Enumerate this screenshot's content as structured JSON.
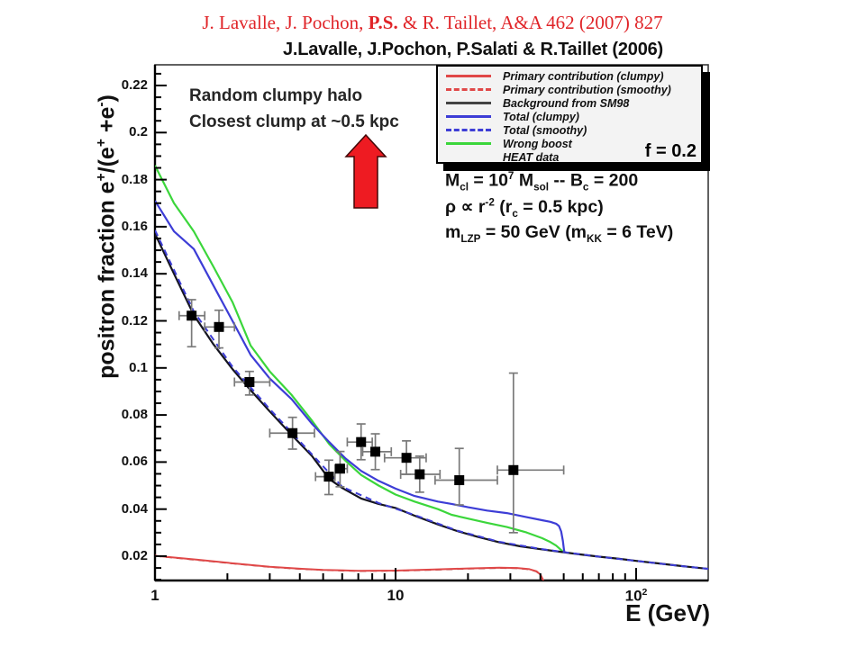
{
  "titles": {
    "credit_segments": [
      {
        "text": "J. Lavalle, J. Pochon, ",
        "bold": false
      },
      {
        "text": "P.S.",
        "bold": true
      },
      {
        "text": " & R. Taillet, A&A 462 (2007) 827",
        "bold": false
      }
    ],
    "plot_title": "J.Lavalle, J.Pochon, P.Salati & R.Taillet (2006)"
  },
  "annotations": {
    "halo_line1": "Random clumpy halo",
    "halo_line2": "Closest clump at ~0.5 kpc",
    "boost_factor": "f = 0.2",
    "stats_lines": [
      "M_{cl} = 10^{7} M_{sol} -- B_{c} = 200",
      "ρ ∝ r^{-2} (r_{c} = 0.5 kpc)",
      "m_{LZP} = 50 GeV (m_{KK} = 6 TeV)"
    ],
    "arrow": {
      "meaning": "red-up-arrow",
      "fill": "#ee1b22",
      "stroke": "#420606"
    }
  },
  "chart_data": {
    "type": "line",
    "title": "J.Lavalle, J.Pochon, P.Salati & R.Taillet (2006)",
    "xlabel": "E (GeV)",
    "ylabel": "positron fraction e^{+}/(e^{+} +e^{-})",
    "x_scale": "log",
    "xlim": [
      1,
      200
    ],
    "ylim": [
      0.0097,
      0.2288
    ],
    "grid": false,
    "legend_position": "top-right",
    "xticks": {
      "majors": [
        {
          "v": 1,
          "label": "1"
        },
        {
          "v": 10,
          "label": "10"
        },
        {
          "v": 100,
          "label": "10^{2}"
        }
      ],
      "minor_mantissas": [
        2,
        3,
        4,
        5,
        6,
        7,
        8,
        9
      ]
    },
    "yticks": {
      "majors": [
        {
          "v": 0.02,
          "label": "0.02"
        },
        {
          "v": 0.04,
          "label": "0.04"
        },
        {
          "v": 0.06,
          "label": "0.06"
        },
        {
          "v": 0.08,
          "label": "0.08"
        },
        {
          "v": 0.1,
          "label": "0.1"
        },
        {
          "v": 0.12,
          "label": "0.12"
        },
        {
          "v": 0.14,
          "label": "0.14"
        },
        {
          "v": 0.16,
          "label": "0.16"
        },
        {
          "v": 0.18,
          "label": "0.18"
        },
        {
          "v": 0.2,
          "label": "0.2"
        },
        {
          "v": 0.22,
          "label": "0.22"
        }
      ],
      "minor_step": 0.005
    },
    "series": [
      {
        "name": "Wrong boost",
        "color": "#3bd63b",
        "style": "solid",
        "width": 2.2,
        "points": [
          [
            1,
            0.186
          ],
          [
            1.2,
            0.17
          ],
          [
            1.45,
            0.158
          ],
          [
            1.75,
            0.143
          ],
          [
            2.1,
            0.128
          ],
          [
            2.5,
            0.1095
          ],
          [
            3,
            0.0985
          ],
          [
            3.7,
            0.0885
          ],
          [
            4.5,
            0.0775
          ],
          [
            5.3,
            0.0676
          ],
          [
            6.2,
            0.0605
          ],
          [
            7.2,
            0.0545
          ],
          [
            8.5,
            0.05
          ],
          [
            10,
            0.0462
          ],
          [
            12,
            0.0432
          ],
          [
            15,
            0.04
          ],
          [
            17.1,
            0.0376
          ],
          [
            20,
            0.036
          ],
          [
            24,
            0.0342
          ],
          [
            29,
            0.0324
          ],
          [
            35,
            0.0301
          ],
          [
            40.6,
            0.0277
          ],
          [
            44,
            0.026
          ],
          [
            46.5,
            0.0245
          ],
          [
            48,
            0.0233
          ],
          [
            49,
            0.0224
          ],
          [
            49.7,
            0.0218
          ]
        ]
      },
      {
        "name": "Total (clumpy)",
        "color": "#3d3dd6",
        "style": "solid",
        "width": 2.2,
        "points": [
          [
            1,
            0.171
          ],
          [
            1.2,
            0.158
          ],
          [
            1.45,
            0.1505
          ],
          [
            1.75,
            0.135
          ],
          [
            2.1,
            0.12
          ],
          [
            2.5,
            0.1055
          ],
          [
            3,
            0.0955
          ],
          [
            3.7,
            0.0867
          ],
          [
            4.5,
            0.0762
          ],
          [
            5.3,
            0.0685
          ],
          [
            6.2,
            0.0615
          ],
          [
            7.2,
            0.0562
          ],
          [
            8.5,
            0.052
          ],
          [
            10,
            0.0487
          ],
          [
            12,
            0.0456
          ],
          [
            15,
            0.0432
          ],
          [
            17.1,
            0.0422
          ],
          [
            20,
            0.0408
          ],
          [
            24,
            0.0394
          ],
          [
            29,
            0.0383
          ],
          [
            35,
            0.0366
          ],
          [
            40.6,
            0.0353
          ],
          [
            44,
            0.0346
          ],
          [
            46.5,
            0.0338
          ],
          [
            47.8,
            0.0328
          ],
          [
            48.8,
            0.0305
          ],
          [
            49.6,
            0.0265
          ],
          [
            50.1,
            0.0228
          ],
          [
            50.4,
            0.0216
          ]
        ]
      },
      {
        "name": "Background from SM98",
        "color": "#15151f",
        "style": "solid",
        "width": 2.2,
        "points": [
          [
            1,
            0.157
          ],
          [
            1.2,
            0.14
          ],
          [
            1.45,
            0.1225
          ],
          [
            1.75,
            0.11
          ],
          [
            2.1,
            0.0995
          ],
          [
            2.5,
            0.0905
          ],
          [
            3,
            0.0815
          ],
          [
            3.7,
            0.0715
          ],
          [
            4.5,
            0.0625
          ],
          [
            5.3,
            0.0528
          ],
          [
            6,
            0.049
          ],
          [
            7.2,
            0.0445
          ],
          [
            8.5,
            0.0422
          ],
          [
            10,
            0.0405
          ],
          [
            12,
            0.0372
          ],
          [
            15,
            0.0335
          ],
          [
            18,
            0.0307
          ],
          [
            22,
            0.0282
          ],
          [
            27,
            0.0259
          ],
          [
            33,
            0.0242
          ],
          [
            40,
            0.023
          ],
          [
            48,
            0.0219
          ],
          [
            58,
            0.0208
          ],
          [
            70,
            0.0198
          ],
          [
            85,
            0.0189
          ],
          [
            100,
            0.018
          ],
          [
            125,
            0.0169
          ],
          [
            155,
            0.0158
          ],
          [
            200,
            0.0146
          ]
        ]
      },
      {
        "name": "Total (smoothy)",
        "color": "#3d3dd6",
        "style": "dashed",
        "width": 2.0,
        "points": [
          [
            1,
            0.1585
          ],
          [
            1.45,
            0.124
          ],
          [
            2.1,
            0.1005
          ],
          [
            3,
            0.0825
          ],
          [
            4.5,
            0.0632
          ],
          [
            6,
            0.0495
          ],
          [
            8.5,
            0.0426
          ],
          [
            12,
            0.0375
          ],
          [
            18,
            0.0309
          ],
          [
            27,
            0.0261
          ],
          [
            40,
            0.0231
          ],
          [
            48,
            0.022
          ],
          [
            70,
            0.0198
          ],
          [
            100,
            0.018
          ],
          [
            140,
            0.0163
          ],
          [
            200,
            0.0146
          ]
        ]
      },
      {
        "name": "Primary contribution (smoothy)",
        "color": "#a03030",
        "style": "dashed",
        "width": 1.8,
        "points": [
          [
            1,
            0.0201
          ],
          [
            1.5,
            0.0184
          ],
          [
            2.2,
            0.0167
          ],
          [
            3,
            0.0154
          ],
          [
            4,
            0.0146
          ],
          [
            5,
            0.0141
          ],
          [
            7,
            0.0137
          ],
          [
            10,
            0.0138
          ],
          [
            14,
            0.0142
          ],
          [
            20,
            0.0147
          ],
          [
            27,
            0.015
          ],
          [
            32,
            0.0149
          ],
          [
            36,
            0.0144
          ],
          [
            38.5,
            0.0135
          ],
          [
            40,
            0.0121
          ],
          [
            41,
            0.0099
          ],
          [
            41.6,
            0.0078
          ]
        ]
      },
      {
        "name": "Primary contribution (clumpy)",
        "color": "#e04848",
        "style": "solid",
        "width": 2.0,
        "points": [
          [
            1,
            0.0202
          ],
          [
            1.5,
            0.0185
          ],
          [
            2.2,
            0.0168
          ],
          [
            3,
            0.0155
          ],
          [
            4,
            0.0147
          ],
          [
            5,
            0.0142
          ],
          [
            7,
            0.0138
          ],
          [
            10,
            0.0139
          ],
          [
            14,
            0.0143
          ],
          [
            20,
            0.0148
          ],
          [
            27,
            0.0151
          ],
          [
            32,
            0.015
          ],
          [
            36,
            0.0145
          ],
          [
            38.5,
            0.0136
          ],
          [
            40,
            0.0122
          ],
          [
            41,
            0.01
          ],
          [
            41.6,
            0.008
          ]
        ]
      }
    ],
    "heat_data": {
      "name": "HEAT data",
      "marker": "square",
      "marker_color": "#000000",
      "error_color": "#7a7a7a",
      "points": [
        {
          "x": 1.42,
          "y": 0.1222,
          "xlo": 1.26,
          "xhi": 1.61,
          "ylo": 0.109,
          "yhi": 0.129
        },
        {
          "x": 1.845,
          "y": 0.1174,
          "xlo": 1.61,
          "xhi": 2.14,
          "ylo": 0.1085,
          "yhi": 0.1245
        },
        {
          "x": 2.47,
          "y": 0.094,
          "xlo": 2.14,
          "xhi": 3.0,
          "ylo": 0.0885,
          "yhi": 0.0985
        },
        {
          "x": 3.73,
          "y": 0.0723,
          "xlo": 3.0,
          "xhi": 4.6,
          "ylo": 0.0655,
          "yhi": 0.079
        },
        {
          "x": 5.28,
          "y": 0.0538,
          "xlo": 4.65,
          "xhi": 5.6,
          "ylo": 0.0462,
          "yhi": 0.0608
        },
        {
          "x": 5.88,
          "y": 0.0572,
          "xlo": 5.6,
          "xhi": 6.3,
          "ylo": 0.0495,
          "yhi": 0.0645
        },
        {
          "x": 7.19,
          "y": 0.0685,
          "xlo": 6.3,
          "xhi": 8.0,
          "ylo": 0.061,
          "yhi": 0.0762
        },
        {
          "x": 8.24,
          "y": 0.0644,
          "xlo": 7.3,
          "xhi": 9.6,
          "ylo": 0.0568,
          "yhi": 0.072
        },
        {
          "x": 11.1,
          "y": 0.0618,
          "xlo": 9.0,
          "xhi": 13.4,
          "ylo": 0.0548,
          "yhi": 0.069
        },
        {
          "x": 12.6,
          "y": 0.0548,
          "xlo": 10.5,
          "xhi": 15.3,
          "ylo": 0.0472,
          "yhi": 0.0625
        },
        {
          "x": 18.4,
          "y": 0.0523,
          "xlo": 14.6,
          "xhi": 26.5,
          "ylo": 0.0418,
          "yhi": 0.0658
        },
        {
          "x": 30.9,
          "y": 0.0566,
          "xlo": 26.5,
          "xhi": 50.0,
          "ylo": 0.03,
          "yhi": 0.0978
        }
      ]
    },
    "legend": [
      {
        "label": "Primary contribution (clumpy)",
        "color": "#e04848",
        "style": "solid"
      },
      {
        "label": "Primary contribution (smoothy)",
        "color": "#e04848",
        "style": "dashed"
      },
      {
        "label": "Background from SM98",
        "color": "#444444",
        "style": "solid"
      },
      {
        "label": "Total (clumpy)",
        "color": "#3d3dd6",
        "style": "solid"
      },
      {
        "label": "Total (smoothy)",
        "color": "#3d3dd6",
        "style": "dashed"
      },
      {
        "label": "Wrong boost",
        "color": "#3bd63b",
        "style": "solid"
      },
      {
        "label": "HEAT data",
        "color": "#000000",
        "style": "marker"
      }
    ]
  }
}
